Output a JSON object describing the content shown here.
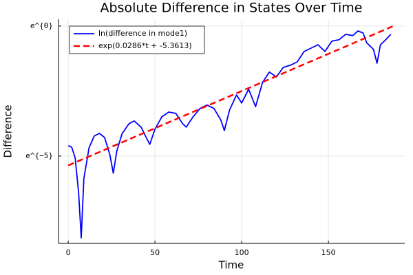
{
  "chart_data": {
    "type": "line",
    "title": "Absolute Difference in States Over Time",
    "xlabel": "Time",
    "ylabel": "Difference",
    "xlim": [
      -5.6,
      194
    ],
    "xticks": [
      0,
      50,
      100,
      150
    ],
    "ylim": [
      0.000234,
      1.297
    ],
    "yscale": "log",
    "ybase": "e",
    "yticks": [
      {
        "value": 0.006738,
        "label": "e^{−5}"
      },
      {
        "value": 1,
        "label": "e^{0}"
      }
    ],
    "grid": true,
    "legend": "top-left",
    "series": [
      {
        "name": "ln(difference in mode1)",
        "color": "#0000ff",
        "dash": false,
        "x": [
          0,
          2,
          4,
          6,
          7.5,
          9,
          12,
          15,
          18,
          21,
          24,
          26,
          28,
          31,
          35,
          38,
          42,
          45,
          47,
          50,
          54,
          58,
          62,
          66,
          68,
          72,
          76,
          80,
          84,
          88,
          90,
          93,
          97,
          100,
          104,
          108,
          112,
          116,
          120,
          124,
          128,
          132,
          136,
          140,
          144,
          148,
          152,
          156,
          160,
          164,
          167,
          170,
          172,
          176,
          178,
          180,
          183,
          186
        ],
        "values": [
          0.01005,
          0.00947,
          0.00622,
          0.00166,
          0.000289,
          0.00282,
          0.00928,
          0.01455,
          0.01608,
          0.0137,
          0.00708,
          0.00348,
          0.00815,
          0.01576,
          0.02328,
          0.02599,
          0.02045,
          0.0137,
          0.01057,
          0.01887,
          0.03049,
          0.03652,
          0.03474,
          0.02328,
          0.02045,
          0.03049,
          0.042,
          0.04783,
          0.042,
          0.02678,
          0.01795,
          0.03956,
          0.07065,
          0.05182,
          0.08804,
          0.04505,
          0.1142,
          0.1703,
          0.1409,
          0.2039,
          0.2209,
          0.2516,
          0.3753,
          0.4274,
          0.4868,
          0.3753,
          0.5599,
          0.5886,
          0.7261,
          0.6907,
          0.827,
          0.7634,
          0.5273,
          0.4066,
          0.2393,
          0.4868,
          0.5886,
          0.7261
        ]
      },
      {
        "name": "exp(0.0286*t + -5.3613)",
        "color": "#ff0000",
        "dash": true,
        "x": [
          0,
          187
        ],
        "values": [
          0.004694,
          0.987
        ]
      }
    ]
  }
}
